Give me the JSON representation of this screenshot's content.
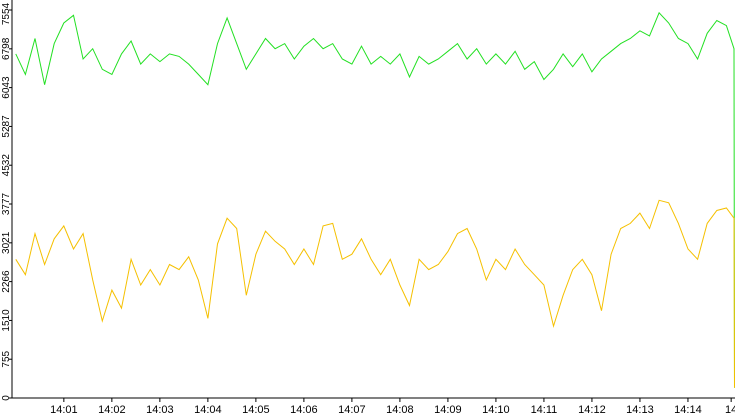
{
  "chart_data": {
    "type": "line",
    "x": [
      0,
      0.2,
      0.4,
      0.6,
      0.8,
      1,
      1.2,
      1.4,
      1.6,
      1.8,
      2,
      2.2,
      2.4,
      2.6,
      2.8,
      3,
      3.2,
      3.4,
      3.6,
      3.8,
      4,
      4.2,
      4.4,
      4.6,
      4.8,
      5,
      5.2,
      5.4,
      5.6,
      5.8,
      6,
      6.2,
      6.4,
      6.6,
      6.8,
      7,
      7.2,
      7.4,
      7.6,
      7.8,
      8,
      8.2,
      8.4,
      8.6,
      8.8,
      9,
      9.2,
      9.4,
      9.6,
      9.8,
      10,
      10.2,
      10.4,
      10.6,
      10.8,
      11,
      11.2,
      11.4,
      11.6,
      11.8,
      12,
      12.2,
      12.4,
      12.6,
      12.8,
      13,
      13.2,
      13.4,
      13.6,
      13.8,
      14,
      14.2,
      14.4,
      14.6,
      14.8,
      14.96,
      14.97
    ],
    "series": [
      {
        "color": "#22e022",
        "values": [
          6700,
          6300,
          7000,
          6100,
          6900,
          7300,
          7450,
          6600,
          6800,
          6400,
          6300,
          6700,
          6950,
          6500,
          6700,
          6550,
          6700,
          6650,
          6500,
          6300,
          6100,
          6900,
          7400,
          6900,
          6400,
          6700,
          7000,
          6800,
          6900,
          6600,
          6850,
          7000,
          6800,
          6900,
          6600,
          6500,
          6850,
          6500,
          6650,
          6500,
          6700,
          6250,
          6650,
          6500,
          6600,
          6750,
          6900,
          6600,
          6800,
          6500,
          6700,
          6500,
          6750,
          6400,
          6550,
          6200,
          6400,
          6700,
          6450,
          6700,
          6350,
          6600,
          6750,
          6900,
          7000,
          7150,
          7050,
          7500,
          7300,
          7000,
          6900,
          6600,
          7100,
          7350,
          7250,
          6800,
          200
        ]
      },
      {
        "color": "#f5c000",
        "values": [
          2700,
          2400,
          3200,
          2600,
          3100,
          3350,
          2900,
          3200,
          2300,
          1500,
          2100,
          1750,
          2700,
          2200,
          2500,
          2200,
          2600,
          2500,
          2750,
          2300,
          1550,
          3000,
          3500,
          3300,
          2000,
          2800,
          3250,
          3050,
          2900,
          2600,
          2900,
          2600,
          3350,
          3400,
          2700,
          2800,
          3100,
          2700,
          2400,
          2700,
          2200,
          1800,
          2700,
          2500,
          2600,
          2850,
          3200,
          3300,
          2900,
          2300,
          2700,
          2500,
          2900,
          2600,
          2400,
          2200,
          1400,
          2000,
          2500,
          2700,
          2400,
          1700,
          2800,
          3300,
          3400,
          3600,
          3300,
          3850,
          3800,
          3400,
          2900,
          2700,
          3400,
          3650,
          3700,
          3500,
          200
        ]
      }
    ],
    "xlim": [
      -0.08,
      14.98
    ],
    "xticks": [
      {
        "value": 1,
        "label": "14:01"
      },
      {
        "value": 2,
        "label": "14:02"
      },
      {
        "value": 3,
        "label": "14:03"
      },
      {
        "value": 4,
        "label": "14:04"
      },
      {
        "value": 5,
        "label": "14:05"
      },
      {
        "value": 6,
        "label": "14:06"
      },
      {
        "value": 7,
        "label": "14:07"
      },
      {
        "value": 8,
        "label": "14:08"
      },
      {
        "value": 9,
        "label": "14:09"
      },
      {
        "value": 10,
        "label": "14:10"
      },
      {
        "value": 11,
        "label": "14:11"
      },
      {
        "value": 12,
        "label": "14:12"
      },
      {
        "value": 13,
        "label": "14:13"
      },
      {
        "value": 14,
        "label": "14:14"
      },
      {
        "value": 14.9,
        "label": "14"
      }
    ],
    "ylim": [
      0,
      7554
    ],
    "yticks": [
      0,
      755,
      1510,
      2266,
      3021,
      3777,
      4532,
      5287,
      6043,
      6798,
      7554
    ]
  }
}
